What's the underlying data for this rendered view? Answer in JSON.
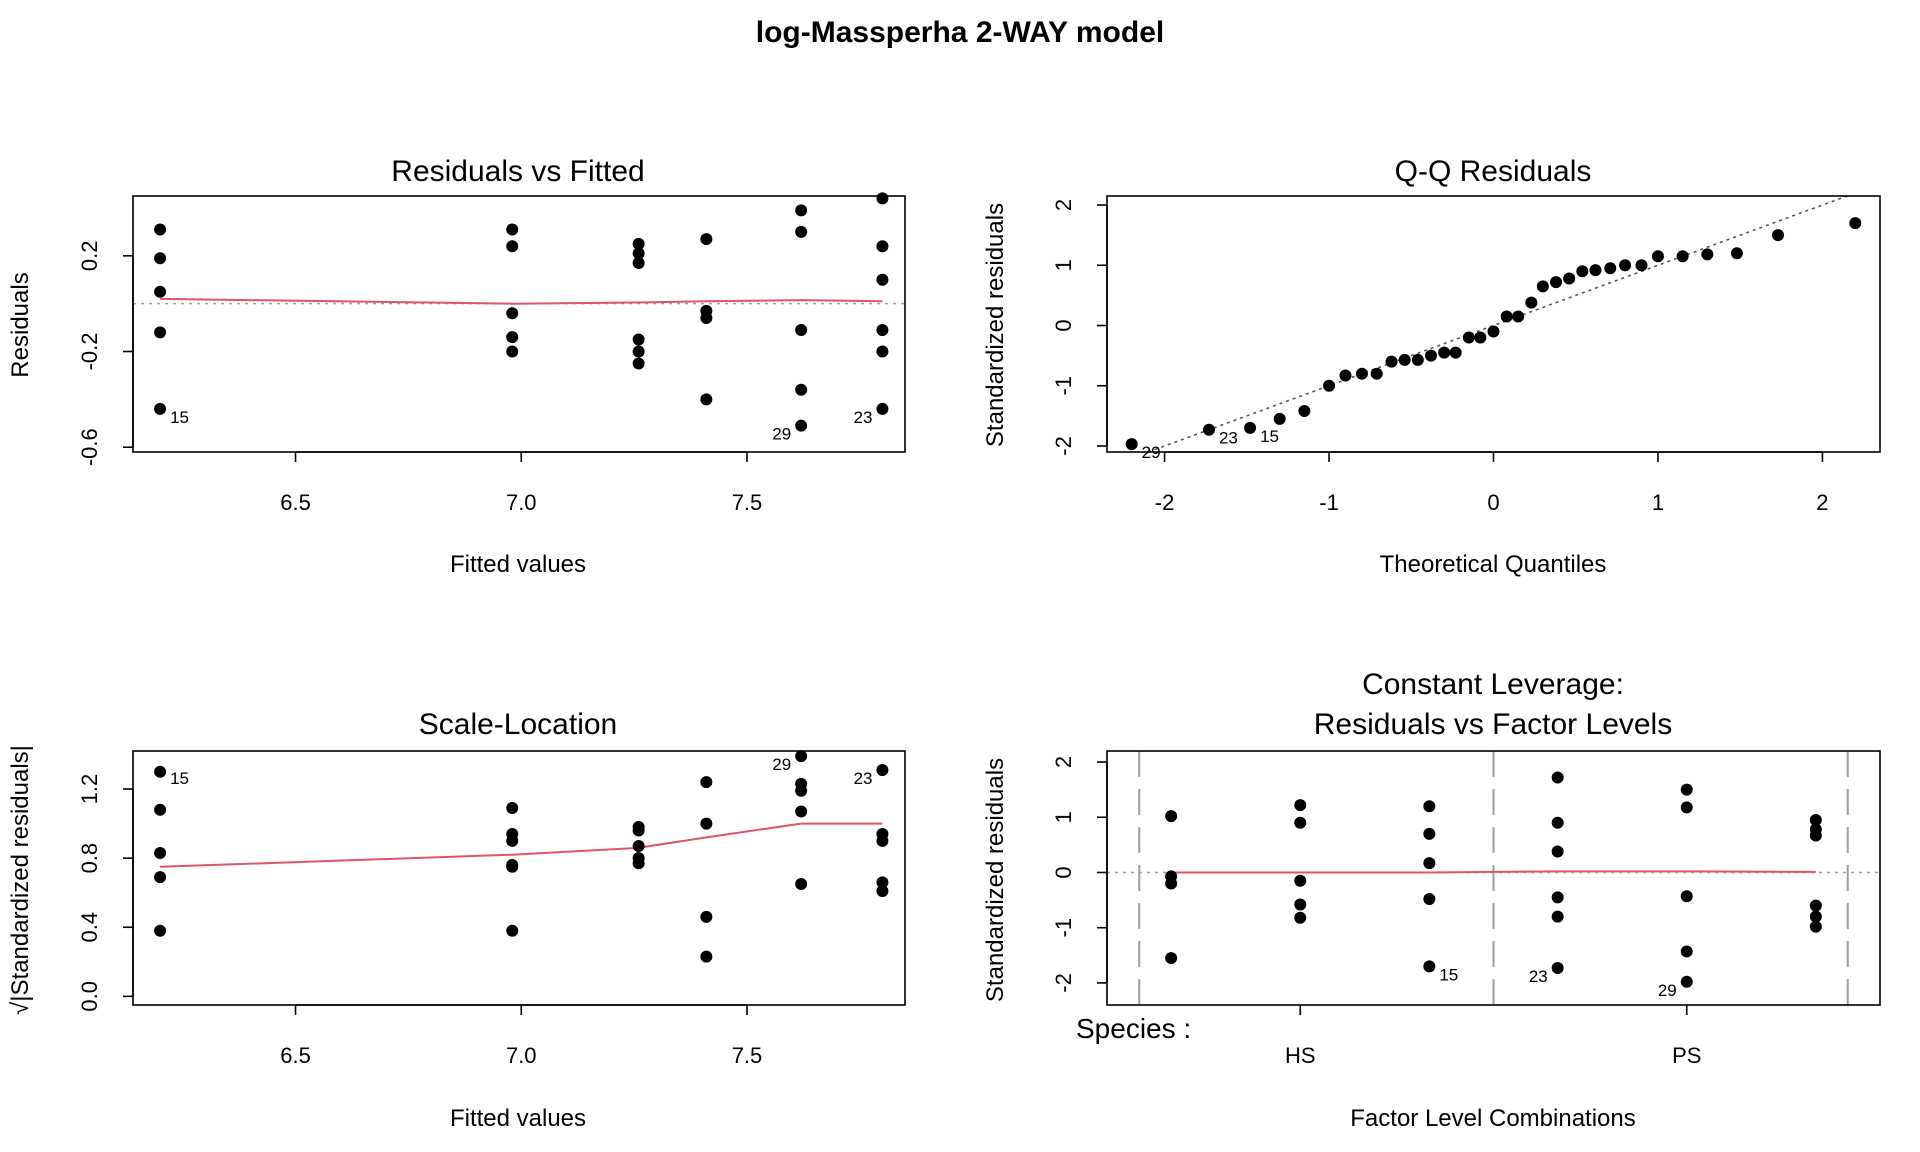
{
  "figure": {
    "title": "log-Massperha 2-WAY model",
    "colors": {
      "points": "#000000",
      "smooth": "#DF536B",
      "reference": "#9E9E9E",
      "qqline": "#555555"
    }
  },
  "chart_data": [
    {
      "type": "scatter",
      "title": "Residuals vs Fitted",
      "xlabel": "Fitted values",
      "ylabel": "Residuals",
      "xlim": [
        6.14,
        7.85
      ],
      "ylim": [
        -0.62,
        0.45
      ],
      "xticks": [
        6.5,
        7.0,
        7.5
      ],
      "xtick_labels": [
        "6.5",
        "7.0",
        "7.5"
      ],
      "yticks": [
        -0.6,
        -0.2,
        0.2
      ],
      "ytick_labels": [
        "-0.6",
        "-0.2",
        "0.2"
      ],
      "ytick_rotated": true,
      "hline": 0,
      "points": [
        [
          6.2,
          0.31
        ],
        [
          6.2,
          0.19
        ],
        [
          6.2,
          0.05
        ],
        [
          6.2,
          -0.12
        ],
        [
          6.2,
          -0.44
        ],
        [
          6.98,
          0.31
        ],
        [
          6.98,
          0.24
        ],
        [
          6.98,
          -0.04
        ],
        [
          6.98,
          -0.14
        ],
        [
          6.98,
          -0.2
        ],
        [
          7.26,
          0.25
        ],
        [
          7.26,
          0.21
        ],
        [
          7.26,
          0.17
        ],
        [
          7.26,
          -0.15
        ],
        [
          7.26,
          -0.2
        ],
        [
          7.26,
          -0.25
        ],
        [
          7.41,
          0.27
        ],
        [
          7.41,
          -0.03
        ],
        [
          7.41,
          -0.06
        ],
        [
          7.41,
          -0.4
        ],
        [
          7.62,
          0.39
        ],
        [
          7.62,
          0.3
        ],
        [
          7.62,
          -0.11
        ],
        [
          7.62,
          -0.36
        ],
        [
          7.62,
          -0.51
        ],
        [
          7.8,
          0.44
        ],
        [
          7.8,
          0.24
        ],
        [
          7.8,
          0.1
        ],
        [
          7.8,
          -0.11
        ],
        [
          7.8,
          -0.2
        ],
        [
          7.8,
          -0.44
        ]
      ],
      "smooth": [
        [
          6.2,
          0.02
        ],
        [
          6.98,
          0.0
        ],
        [
          7.26,
          0.005
        ],
        [
          7.41,
          0.01
        ],
        [
          7.62,
          0.015
        ],
        [
          7.8,
          0.01
        ]
      ],
      "annotations": [
        {
          "text": "15",
          "x": 6.2,
          "y": -0.44,
          "side": "right"
        },
        {
          "text": "29",
          "x": 7.62,
          "y": -0.51,
          "side": "left"
        },
        {
          "text": "23",
          "x": 7.8,
          "y": -0.44,
          "side": "left"
        }
      ]
    },
    {
      "type": "scatter",
      "title": "Q-Q Residuals",
      "xlabel": "Theoretical Quantiles",
      "ylabel": "Standardized residuals",
      "xlim": [
        -2.35,
        2.35
      ],
      "ylim": [
        -2.1,
        2.15
      ],
      "xticks": [
        -2,
        -1,
        0,
        1,
        2
      ],
      "xtick_labels": [
        "-2",
        "-1",
        "0",
        "1",
        "2"
      ],
      "yticks": [
        -2,
        -1,
        0,
        1,
        2
      ],
      "ytick_labels": [
        "-2",
        "-1",
        "0",
        "1",
        "2"
      ],
      "ytick_rotated": true,
      "qqline": [
        [
          -2.5,
          -2.5
        ],
        [
          2.5,
          2.5
        ]
      ],
      "points": [
        [
          -2.2,
          -1.97
        ],
        [
          -1.73,
          -1.73
        ],
        [
          -1.48,
          -1.7
        ],
        [
          -1.3,
          -1.55
        ],
        [
          -1.15,
          -1.42
        ],
        [
          -1.0,
          -1.0
        ],
        [
          -0.9,
          -0.83
        ],
        [
          -0.8,
          -0.8
        ],
        [
          -0.71,
          -0.8
        ],
        [
          -0.62,
          -0.6
        ],
        [
          -0.54,
          -0.57
        ],
        [
          -0.46,
          -0.57
        ],
        [
          -0.38,
          -0.5
        ],
        [
          -0.3,
          -0.45
        ],
        [
          -0.23,
          -0.45
        ],
        [
          -0.15,
          -0.2
        ],
        [
          -0.08,
          -0.2
        ],
        [
          0.0,
          -0.1
        ],
        [
          0.08,
          0.15
        ],
        [
          0.15,
          0.15
        ],
        [
          0.23,
          0.38
        ],
        [
          0.3,
          0.65
        ],
        [
          0.38,
          0.72
        ],
        [
          0.46,
          0.78
        ],
        [
          0.54,
          0.9
        ],
        [
          0.62,
          0.92
        ],
        [
          0.71,
          0.95
        ],
        [
          0.8,
          1.0
        ],
        [
          0.9,
          1.0
        ],
        [
          1.0,
          1.15
        ],
        [
          1.15,
          1.15
        ],
        [
          1.3,
          1.18
        ],
        [
          1.48,
          1.2
        ],
        [
          1.73,
          1.5
        ],
        [
          2.2,
          1.7
        ]
      ],
      "annotations": [
        {
          "text": "29",
          "x": -2.2,
          "y": -1.97,
          "side": "right"
        },
        {
          "text": "23",
          "x": -1.73,
          "y": -1.73,
          "side": "right"
        },
        {
          "text": "15",
          "x": -1.48,
          "y": -1.7,
          "side": "right"
        }
      ]
    },
    {
      "type": "scatter",
      "title": "Scale-Location",
      "xlabel": "Fitted values",
      "ylabel": "√|Standardized residuals|",
      "xlim": [
        6.14,
        7.85
      ],
      "ylim": [
        -0.05,
        1.42
      ],
      "xticks": [
        6.5,
        7.0,
        7.5
      ],
      "xtick_labels": [
        "6.5",
        "7.0",
        "7.5"
      ],
      "yticks": [
        0.0,
        0.4,
        0.8,
        1.2
      ],
      "ytick_labels": [
        "0.0",
        "0.4",
        "0.8",
        "1.2"
      ],
      "ytick_rotated": true,
      "points": [
        [
          6.2,
          1.3
        ],
        [
          6.2,
          1.08
        ],
        [
          6.2,
          0.83
        ],
        [
          6.2,
          0.69
        ],
        [
          6.2,
          0.38
        ],
        [
          6.98,
          1.09
        ],
        [
          6.98,
          0.94
        ],
        [
          6.98,
          0.9
        ],
        [
          6.98,
          0.76
        ],
        [
          6.98,
          0.75
        ],
        [
          6.98,
          0.38
        ],
        [
          7.26,
          0.98
        ],
        [
          7.26,
          0.96
        ],
        [
          7.26,
          0.87
        ],
        [
          7.26,
          0.8
        ],
        [
          7.26,
          0.77
        ],
        [
          7.41,
          1.24
        ],
        [
          7.41,
          1.0
        ],
        [
          7.41,
          0.46
        ],
        [
          7.41,
          0.23
        ],
        [
          7.62,
          1.39
        ],
        [
          7.62,
          1.23
        ],
        [
          7.62,
          1.19
        ],
        [
          7.62,
          1.07
        ],
        [
          7.62,
          0.65
        ],
        [
          7.8,
          1.31
        ],
        [
          7.8,
          0.94
        ],
        [
          7.8,
          0.9
        ],
        [
          7.8,
          0.66
        ],
        [
          7.8,
          0.61
        ]
      ],
      "smooth": [
        [
          6.2,
          0.75
        ],
        [
          6.98,
          0.82
        ],
        [
          7.26,
          0.86
        ],
        [
          7.41,
          0.92
        ],
        [
          7.62,
          1.0
        ],
        [
          7.8,
          1.0
        ]
      ],
      "annotations": [
        {
          "text": "15",
          "x": 6.2,
          "y": 1.31,
          "side": "right"
        },
        {
          "text": "29",
          "x": 7.62,
          "y": 1.39,
          "side": "left"
        },
        {
          "text": "23",
          "x": 7.8,
          "y": 1.31,
          "side": "left"
        }
      ]
    },
    {
      "type": "scatter",
      "title": "Constant Leverage:",
      "subtitle": "Residuals vs Factor Levels",
      "xlabel": "Factor Level Combinations",
      "ylabel": "Standardized residuals",
      "xlim": [
        0,
        1
      ],
      "ylim": [
        -2.4,
        2.2
      ],
      "yticks": [
        -2,
        -1,
        0,
        1,
        2
      ],
      "ytick_labels": [
        "-2",
        "-1",
        "0",
        "1",
        "2"
      ],
      "ytick_rotated": true,
      "factor_label": "Species :",
      "factor_levels": [
        {
          "label": "HS",
          "x": 0.25
        },
        {
          "label": "PS",
          "x": 0.75
        }
      ],
      "hline": 0,
      "vlines": [
        0.0417,
        0.5,
        0.9583
      ],
      "points": [
        [
          0.083,
          1.02
        ],
        [
          0.083,
          -0.07
        ],
        [
          0.083,
          -0.2
        ],
        [
          0.083,
          -1.55
        ],
        [
          0.25,
          1.22
        ],
        [
          0.25,
          0.9
        ],
        [
          0.25,
          -0.15
        ],
        [
          0.25,
          -0.58
        ],
        [
          0.25,
          -0.82
        ],
        [
          0.417,
          1.2
        ],
        [
          0.417,
          0.7
        ],
        [
          0.417,
          0.17
        ],
        [
          0.417,
          -0.48
        ],
        [
          0.417,
          -1.7
        ],
        [
          0.583,
          1.72
        ],
        [
          0.583,
          0.9
        ],
        [
          0.583,
          0.38
        ],
        [
          0.583,
          -0.45
        ],
        [
          0.583,
          -0.8
        ],
        [
          0.583,
          -1.73
        ],
        [
          0.75,
          1.5
        ],
        [
          0.75,
          1.18
        ],
        [
          0.75,
          -0.43
        ],
        [
          0.75,
          -1.43
        ],
        [
          0.75,
          -1.98
        ],
        [
          0.917,
          0.95
        ],
        [
          0.917,
          0.78
        ],
        [
          0.917,
          0.67
        ],
        [
          0.917,
          -0.6
        ],
        [
          0.917,
          -0.8
        ],
        [
          0.917,
          -0.98
        ]
      ],
      "smooth": [
        [
          0.083,
          0.0
        ],
        [
          0.25,
          0.0
        ],
        [
          0.417,
          0.0
        ],
        [
          0.5,
          0.01
        ],
        [
          0.583,
          0.02
        ],
        [
          0.75,
          0.02
        ],
        [
          0.917,
          0.01
        ]
      ],
      "annotations": [
        {
          "text": "15",
          "x": 0.417,
          "y": -1.7,
          "side": "right"
        },
        {
          "text": "23",
          "x": 0.583,
          "y": -1.73,
          "side": "left"
        },
        {
          "text": "29",
          "x": 0.75,
          "y": -1.98,
          "side": "left"
        }
      ]
    }
  ]
}
